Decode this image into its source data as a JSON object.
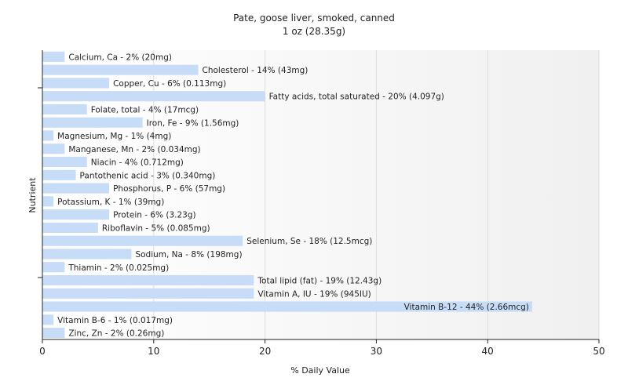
{
  "chart_data": {
    "type": "bar",
    "orientation": "horizontal",
    "title": "Pate, goose liver, smoked, canned",
    "subtitle": "1 oz (28.35g)",
    "xlabel": "% Daily Value",
    "ylabel": "Nutrient",
    "xlim": [
      0,
      50
    ],
    "xticks": [
      "0",
      "10",
      "20",
      "30",
      "40",
      "50"
    ],
    "grid": true,
    "bar_color": "#c6dcf7",
    "categories": [
      "Calcium, Ca",
      "Cholesterol",
      "Copper, Cu",
      "Fatty acids, total saturated",
      "Folate, total",
      "Iron, Fe",
      "Magnesium, Mg",
      "Manganese, Mn",
      "Niacin",
      "Pantothenic acid",
      "Phosphorus, P",
      "Potassium, K",
      "Protein",
      "Riboflavin",
      "Selenium, Se",
      "Sodium, Na",
      "Thiamin",
      "Total lipid (fat)",
      "Vitamin A, IU",
      "Vitamin B-12",
      "Vitamin B-6",
      "Zinc, Zn"
    ],
    "values": [
      2,
      14,
      6,
      20,
      4,
      9,
      1,
      2,
      4,
      3,
      6,
      1,
      6,
      5,
      18,
      8,
      2,
      19,
      19,
      44,
      1,
      2
    ],
    "labels": [
      "Calcium, Ca - 2% (20mg)",
      "Cholesterol - 14% (43mg)",
      "Copper, Cu - 6% (0.113mg)",
      "Fatty acids, total saturated - 20% (4.097g)",
      "Folate, total - 4% (17mcg)",
      "Iron, Fe - 9% (1.56mg)",
      "Magnesium, Mg - 1% (4mg)",
      "Manganese, Mn - 2% (0.034mg)",
      "Niacin - 4% (0.712mg)",
      "Pantothenic acid - 3% (0.340mg)",
      "Phosphorus, P - 6% (57mg)",
      "Potassium, K - 1% (39mg)",
      "Protein - 6% (3.23g)",
      "Riboflavin - 5% (0.085mg)",
      "Selenium, Se - 18% (12.5mcg)",
      "Sodium, Na - 8% (198mg)",
      "Thiamin - 2% (0.025mg)",
      "Total lipid (fat) - 19% (12.43g)",
      "Vitamin A, IU - 19% (945IU)",
      "Vitamin B-12 - 44% (2.66mcg)",
      "Vitamin B-6 - 1% (0.017mg)",
      "Zinc, Zn - 2% (0.26mg)"
    ]
  }
}
